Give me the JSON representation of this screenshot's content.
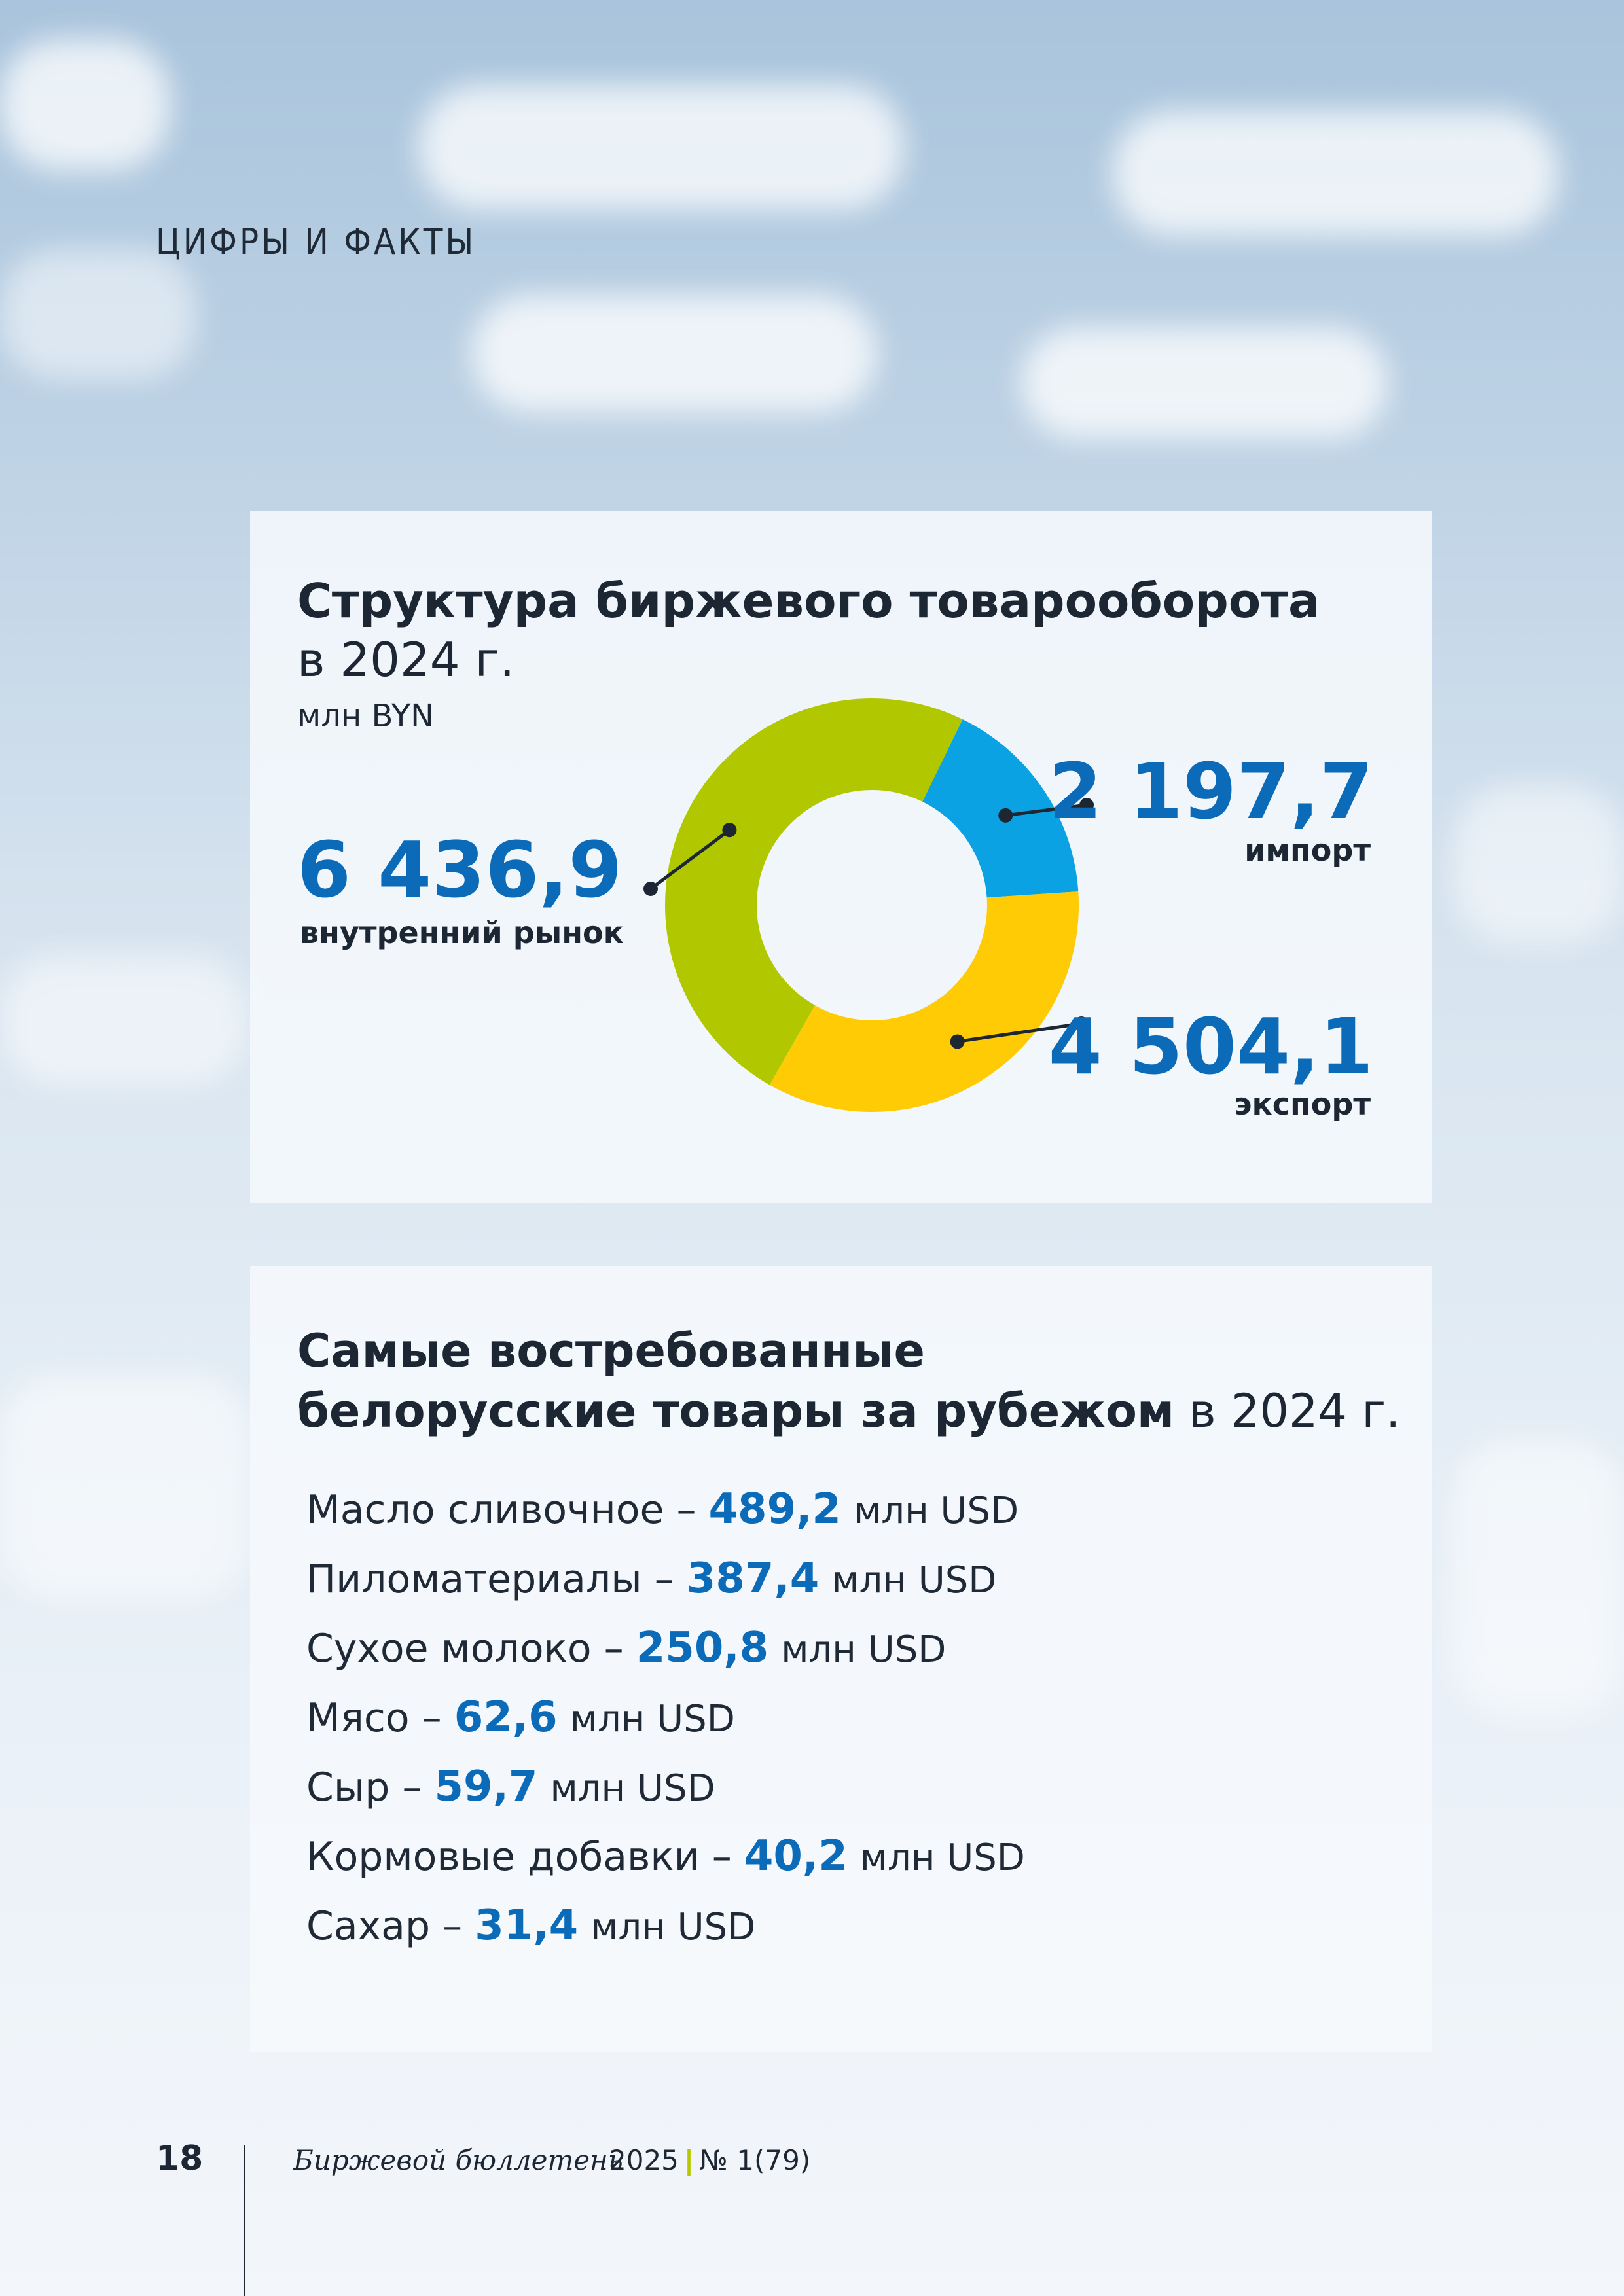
{
  "header": {
    "section_label": "ЦИФРЫ И ФАКТЫ"
  },
  "structure": {
    "title_bold": "Структура биржевого товарооборота",
    "title_rest": "в 2024 г.",
    "unit": "млн BYN",
    "callouts": {
      "domestic": {
        "value": "6 436,9",
        "label": "внутренний рынок"
      },
      "import": {
        "value": "2 197,7",
        "label": "импорт"
      },
      "export": {
        "value": "4 504,1",
        "label": "экспорт"
      }
    }
  },
  "chart_data": {
    "type": "pie",
    "variant": "donut",
    "categories": [
      "внутренний рынок",
      "импорт",
      "экспорт"
    ],
    "values": [
      6436.9,
      2197.7,
      4504.1
    ],
    "colors": [
      "#b1c800",
      "#0aa2e3",
      "#ffcb05"
    ],
    "title": "Структура биржевого товарооборота в 2024 г.",
    "unit": "млн BYN"
  },
  "top_goods": {
    "title_line1": "Самые востребованные",
    "title_line2_bold": "белорусские товары за рубежом",
    "title_line2_rest": "в 2024 г.",
    "separator": "–",
    "items": [
      {
        "name": "Масло сливочное",
        "value": "489,2",
        "unit": "млн USD"
      },
      {
        "name": "Пиломатериалы",
        "value": "387,4",
        "unit": "млн USD"
      },
      {
        "name": "Сухое молоко",
        "value": "250,8",
        "unit": "млн USD"
      },
      {
        "name": "Мясо",
        "value": "62,6",
        "unit": "млн USD"
      },
      {
        "name": "Сыр",
        "value": "59,7",
        "unit": "млн USD"
      },
      {
        "name": "Кормовые добавки",
        "value": "40,2",
        "unit": "млн USD"
      },
      {
        "name": "Сахар",
        "value": "31,4",
        "unit": "млн USD"
      }
    ]
  },
  "footer": {
    "page_number": "18",
    "magazine": "Биржевой бюллетень",
    "year": "2025",
    "issue_divider": "|",
    "issue": "№ 1(79)"
  }
}
